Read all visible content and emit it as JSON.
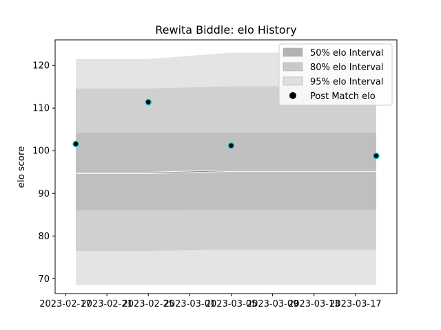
{
  "chart_data": {
    "type": "area",
    "title": "Rewita Biddle: elo History",
    "xlabel": "",
    "ylabel": "elo score",
    "x_type": "date",
    "xlim": [
      "2023-02-16",
      "2023-03-21"
    ],
    "ylim": [
      66.5,
      126
    ],
    "x_ticks": [
      "2023-02-17",
      "2023-02-21",
      "2023-02-25",
      "2023-03-01",
      "2023-03-05",
      "2023-03-09",
      "2023-03-13",
      "2023-03-17"
    ],
    "y_ticks": [
      70,
      80,
      90,
      100,
      110,
      120
    ],
    "grid": false,
    "legend_position": "top-right",
    "dates": [
      "2023-02-18",
      "2023-02-25",
      "2023-03-05",
      "2023-03-19"
    ],
    "mean": [
      94.8,
      94.8,
      95.3,
      95.3
    ],
    "bands": [
      {
        "name": "95% elo Interval",
        "color": "#e4e4e4",
        "upper": [
          121.5,
          121.5,
          123.0,
          123.0
        ],
        "lower": [
          68.5,
          68.5,
          68.5,
          68.5
        ]
      },
      {
        "name": "80% elo Interval",
        "color": "#d0d0d0",
        "upper": [
          114.6,
          114.6,
          115.1,
          115.1
        ],
        "lower": [
          76.5,
          76.5,
          76.8,
          76.8
        ]
      },
      {
        "name": "50% elo Interval",
        "color": "#bfbfbf",
        "upper": [
          104.2,
          104.2,
          104.2,
          104.2
        ],
        "lower": [
          86.1,
          86.1,
          86.2,
          86.2
        ]
      }
    ],
    "series": [
      {
        "name": "Post Match elo",
        "type": "scatter",
        "dates": [
          "2023-02-18",
          "2023-02-25",
          "2023-03-05",
          "2023-03-19"
        ],
        "values": [
          101.6,
          111.4,
          101.2,
          98.8
        ],
        "color": "#000000",
        "edge_color": "#17becf"
      }
    ],
    "legend": [
      {
        "label": "50% elo Interval",
        "swatch": "#b3b3b3",
        "marker": "rect"
      },
      {
        "label": "80% elo Interval",
        "swatch": "#c9c9c9",
        "marker": "rect"
      },
      {
        "label": "95% elo Interval",
        "swatch": "#e0e0e0",
        "marker": "rect"
      },
      {
        "label": "Post Match elo",
        "swatch": "#000000",
        "marker": "circle"
      }
    ]
  }
}
